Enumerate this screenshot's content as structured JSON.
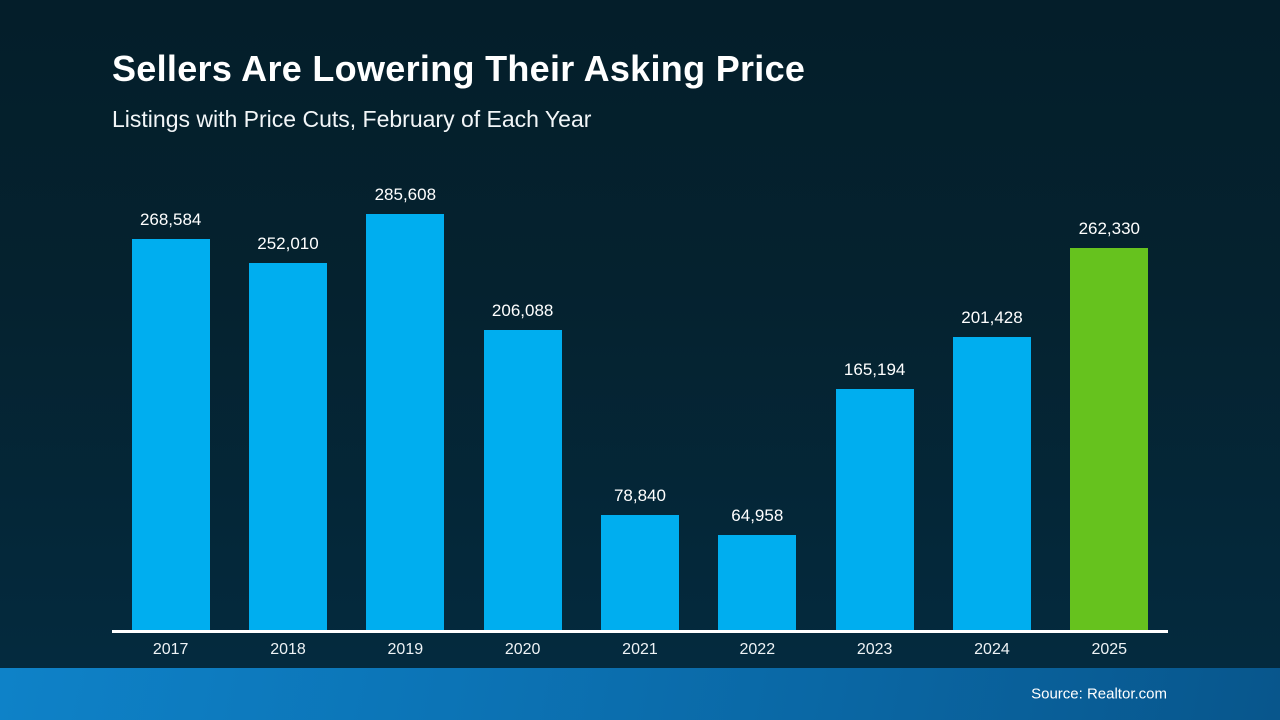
{
  "slide": {
    "title": "Sellers Are Lowering Their Asking Price",
    "subtitle": "Listings with Price Cuts, February of Each Year",
    "source": "Source: Realtor.com"
  },
  "colors": {
    "background_top": "#041e2a",
    "background_bottom": "#042a3e",
    "bar_default": "#00AEEF",
    "bar_highlight": "#66C21E",
    "baseline": "#FFFFFF",
    "footer_gradient_left": "#0E82C8",
    "footer_gradient_right": "#08568C",
    "text": "#FFFFFF"
  },
  "chart_data": {
    "type": "bar",
    "title": "Sellers Are Lowering Their Asking Price",
    "subtitle": "Listings with Price Cuts, February of Each Year",
    "categories": [
      "2017",
      "2018",
      "2019",
      "2020",
      "2021",
      "2022",
      "2023",
      "2024",
      "2025"
    ],
    "values": [
      268584,
      252010,
      285608,
      206088,
      78840,
      64958,
      165194,
      201428,
      262330
    ],
    "value_labels": [
      "268,584",
      "252,010",
      "285,608",
      "206,088",
      "78,840",
      "64,958",
      "165,194",
      "201,428",
      "262,330"
    ],
    "highlight_index": 8,
    "highlight_category": "2025",
    "bar_color": "#00AEEF",
    "highlight_color": "#66C21E",
    "ylim": [
      0,
      285608
    ],
    "xlabel": "",
    "ylabel": "",
    "grid": false,
    "legend": false,
    "data_labels": "above-bars",
    "source": "Source: Realtor.com"
  }
}
